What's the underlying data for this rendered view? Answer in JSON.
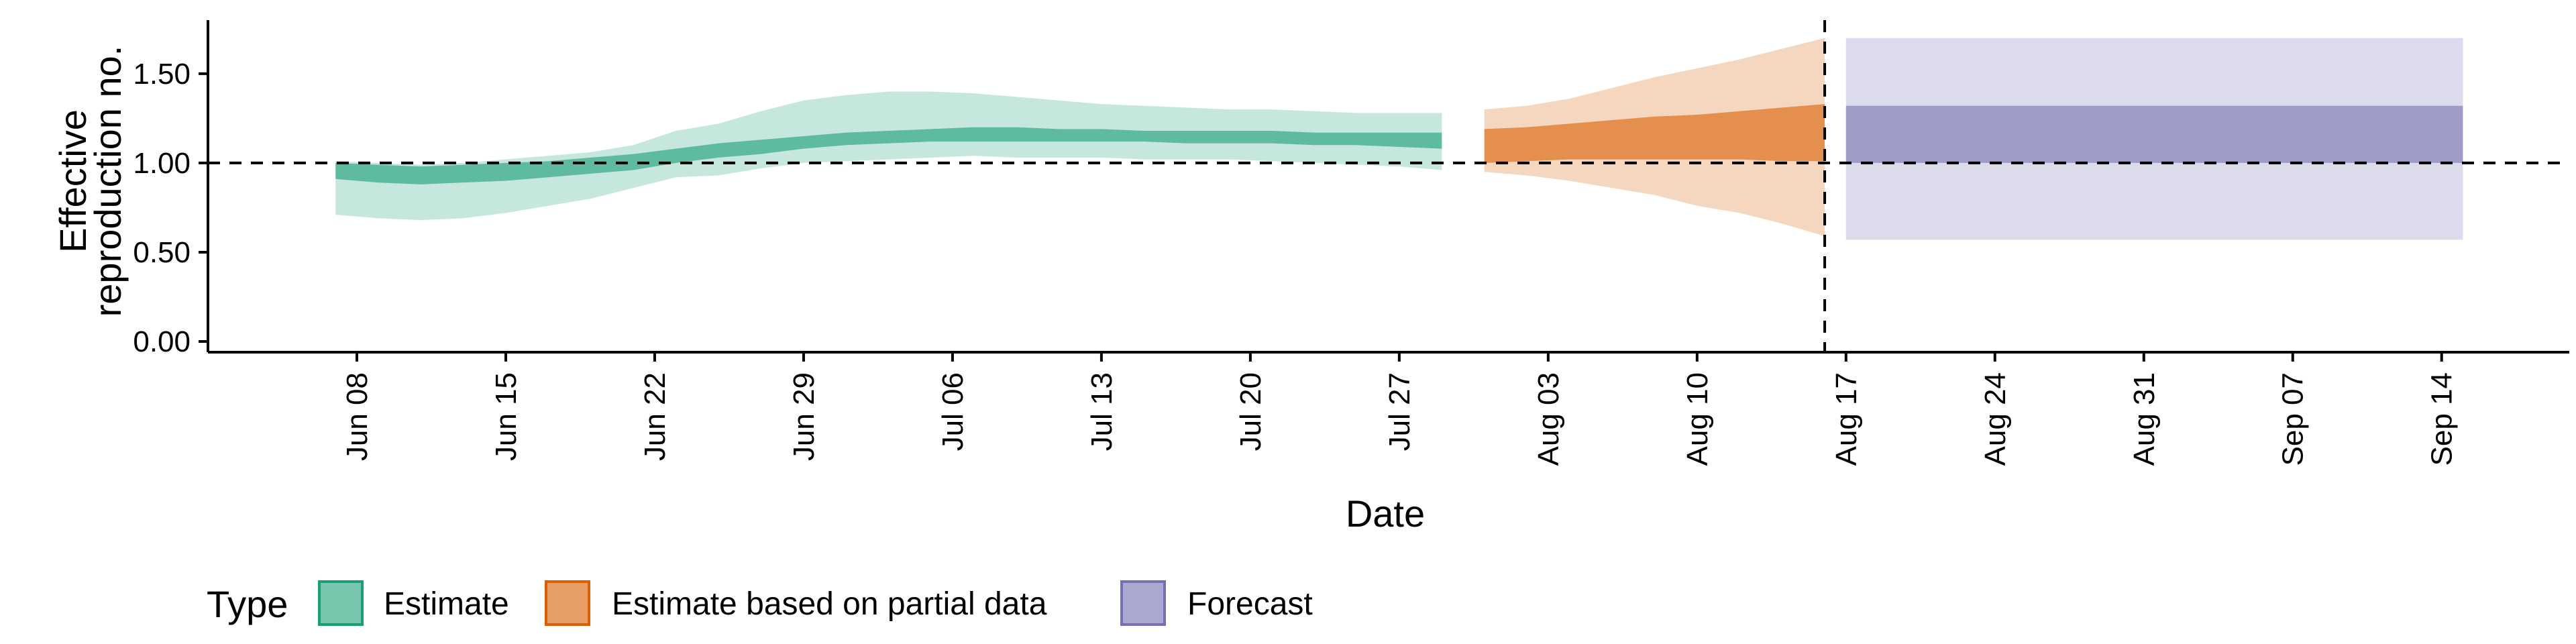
{
  "chart_data": {
    "type": "area",
    "title": "",
    "xlabel": "Date",
    "ylabel_lines": [
      "Effective",
      "reproduction no."
    ],
    "y_ticks": [
      "0.00",
      "0.50",
      "1.00",
      "1.50"
    ],
    "y_tick_values": [
      0,
      0.5,
      1.0,
      1.5
    ],
    "ylim": [
      -0.06,
      1.8
    ],
    "xlim": [
      "2020-06-01",
      "2020-09-20"
    ],
    "x_ticks": [
      {
        "date": "2020-06-08",
        "label": "Jun 08"
      },
      {
        "date": "2020-06-15",
        "label": "Jun 15"
      },
      {
        "date": "2020-06-22",
        "label": "Jun 22"
      },
      {
        "date": "2020-06-29",
        "label": "Jun 29"
      },
      {
        "date": "2020-07-06",
        "label": "Jul 06"
      },
      {
        "date": "2020-07-13",
        "label": "Jul 13"
      },
      {
        "date": "2020-07-20",
        "label": "Jul 20"
      },
      {
        "date": "2020-07-27",
        "label": "Jul 27"
      },
      {
        "date": "2020-08-03",
        "label": "Aug 03"
      },
      {
        "date": "2020-08-10",
        "label": "Aug 10"
      },
      {
        "date": "2020-08-17",
        "label": "Aug 17"
      },
      {
        "date": "2020-08-24",
        "label": "Aug 24"
      },
      {
        "date": "2020-08-31",
        "label": "Aug 31"
      },
      {
        "date": "2020-09-07",
        "label": "Sep 07"
      },
      {
        "date": "2020-09-14",
        "label": "Sep 14"
      }
    ],
    "reference_line_y": 1.0,
    "forecast_start_date": "2020-08-16",
    "grid": false,
    "legend_position": "bottom-left",
    "legend": {
      "title": "Type",
      "entries": [
        {
          "label": "Estimate",
          "color": "#1b9e77"
        },
        {
          "label": "Estimate based on partial data",
          "color": "#d95f02"
        },
        {
          "label": "Forecast",
          "color": "#7570b3"
        }
      ]
    },
    "series": [
      {
        "name": "Estimate",
        "color": "#1b9e77",
        "dates": [
          "2020-06-07",
          "2020-06-09",
          "2020-06-11",
          "2020-06-13",
          "2020-06-15",
          "2020-06-17",
          "2020-06-19",
          "2020-06-21",
          "2020-06-23",
          "2020-06-25",
          "2020-06-27",
          "2020-06-29",
          "2020-07-01",
          "2020-07-03",
          "2020-07-05",
          "2020-07-07",
          "2020-07-09",
          "2020-07-11",
          "2020-07-13",
          "2020-07-15",
          "2020-07-17",
          "2020-07-19",
          "2020-07-21",
          "2020-07-23",
          "2020-07-25",
          "2020-07-27",
          "2020-07-29"
        ],
        "lower90": [
          0.71,
          0.69,
          0.68,
          0.69,
          0.72,
          0.76,
          0.8,
          0.86,
          0.92,
          0.93,
          0.97,
          1.0,
          1.01,
          1.02,
          1.03,
          1.04,
          1.03,
          1.03,
          1.03,
          1.02,
          1.02,
          1.02,
          1.01,
          1.0,
          0.99,
          0.98,
          0.96
        ],
        "upper90": [
          1.01,
          1.0,
          0.99,
          1.0,
          1.02,
          1.04,
          1.06,
          1.1,
          1.18,
          1.22,
          1.29,
          1.35,
          1.38,
          1.4,
          1.4,
          1.39,
          1.37,
          1.35,
          1.33,
          1.32,
          1.31,
          1.3,
          1.3,
          1.29,
          1.28,
          1.28,
          1.28
        ],
        "lower50": [
          0.91,
          0.89,
          0.88,
          0.89,
          0.9,
          0.92,
          0.94,
          0.96,
          1.0,
          1.03,
          1.05,
          1.08,
          1.1,
          1.11,
          1.12,
          1.12,
          1.12,
          1.12,
          1.12,
          1.12,
          1.11,
          1.11,
          1.11,
          1.1,
          1.1,
          1.09,
          1.08
        ],
        "upper50": [
          1.0,
          0.99,
          0.98,
          0.99,
          1.0,
          1.01,
          1.03,
          1.05,
          1.08,
          1.11,
          1.13,
          1.15,
          1.17,
          1.18,
          1.19,
          1.2,
          1.2,
          1.19,
          1.19,
          1.18,
          1.18,
          1.18,
          1.18,
          1.17,
          1.17,
          1.17,
          1.17
        ]
      },
      {
        "name": "Estimate based on partial data",
        "color": "#d95f02",
        "dates": [
          "2020-07-31",
          "2020-08-02",
          "2020-08-04",
          "2020-08-06",
          "2020-08-08",
          "2020-08-10",
          "2020-08-12",
          "2020-08-14",
          "2020-08-16"
        ],
        "lower90": [
          0.95,
          0.93,
          0.9,
          0.86,
          0.82,
          0.76,
          0.72,
          0.66,
          0.59
        ],
        "upper90": [
          1.3,
          1.32,
          1.36,
          1.42,
          1.48,
          1.53,
          1.58,
          1.64,
          1.7
        ],
        "lower50": [
          1.0,
          1.01,
          1.02,
          1.02,
          1.02,
          1.02,
          1.02,
          1.01,
          1.01
        ],
        "upper50": [
          1.19,
          1.2,
          1.22,
          1.24,
          1.26,
          1.27,
          1.29,
          1.31,
          1.33
        ]
      },
      {
        "name": "Forecast",
        "color": "#7570b3",
        "dates": [
          "2020-08-17",
          "2020-09-15"
        ],
        "lower90": [
          0.57,
          0.57
        ],
        "upper90": [
          1.7,
          1.7
        ],
        "lower50": [
          1.0,
          1.0
        ],
        "upper50": [
          1.32,
          1.32
        ]
      }
    ]
  }
}
